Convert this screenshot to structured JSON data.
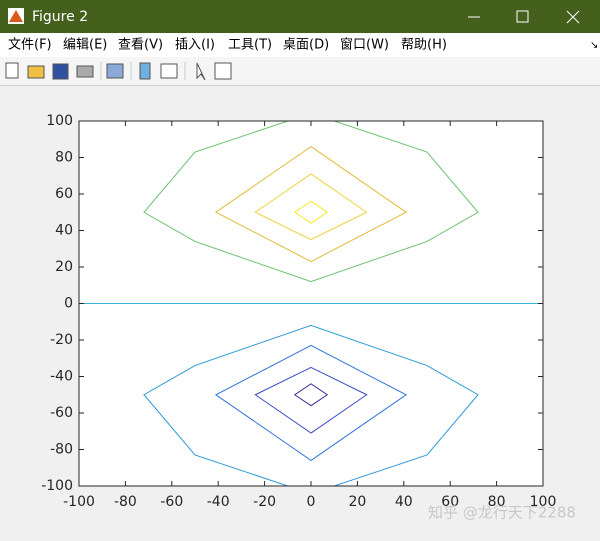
{
  "window": {
    "title": "Figure 2",
    "menu": [
      "文件(F)",
      "编辑(E)",
      "查看(V)",
      "插入(I)",
      "工具(T)",
      "桌面(D)",
      "窗口(W)",
      "帮助(H)"
    ],
    "watermark": "知乎 @龙行天下2288"
  },
  "chart_data": {
    "type": "contour",
    "xlim": [
      -100,
      100
    ],
    "ylim": [
      -100,
      100
    ],
    "xticks": [
      -100,
      -80,
      -60,
      -40,
      -20,
      0,
      20,
      40,
      60,
      80,
      100
    ],
    "yticks": [
      -100,
      -80,
      -60,
      -40,
      -20,
      0,
      20,
      40,
      60,
      80,
      100
    ],
    "series": [
      {
        "color": "#6cc070",
        "closed": false,
        "x": [
          10,
          50,
          72,
          50,
          0,
          -50,
          -72,
          -50,
          -10
        ],
        "y": [
          100,
          83,
          50,
          34,
          12,
          34,
          50,
          83,
          100
        ]
      },
      {
        "color": "#e0bc38",
        "closed": true,
        "x": [
          0,
          41,
          0,
          -41
        ],
        "y": [
          86,
          50,
          23,
          50
        ]
      },
      {
        "color": "#efd23c",
        "closed": true,
        "x": [
          0,
          24,
          0,
          -24
        ],
        "y": [
          71,
          50,
          35,
          50
        ]
      },
      {
        "color": "#f5ea20",
        "closed": true,
        "x": [
          0,
          7,
          0,
          -7
        ],
        "y": [
          56,
          50,
          44,
          50
        ]
      },
      {
        "color": "#38b4d8",
        "closed": false,
        "x": [
          -100,
          100
        ],
        "y": [
          0,
          0
        ]
      },
      {
        "color": "#2c9ad8",
        "closed": false,
        "x": [
          10,
          50,
          72,
          50,
          0,
          -50,
          -72,
          -50,
          -10
        ],
        "y": [
          -100,
          -83,
          -50,
          -34,
          -12,
          -34,
          -50,
          -83,
          -100
        ]
      },
      {
        "color": "#2e72d8",
        "closed": true,
        "x": [
          0,
          41,
          0,
          -41
        ],
        "y": [
          -86,
          -50,
          -23,
          -50
        ]
      },
      {
        "color": "#3a4ac8",
        "closed": true,
        "x": [
          0,
          24,
          0,
          -24
        ],
        "y": [
          -71,
          -50,
          -35,
          -50
        ]
      },
      {
        "color": "#3a2a98",
        "closed": true,
        "x": [
          0,
          7,
          0,
          -7
        ],
        "y": [
          -56,
          -50,
          -44,
          -50
        ]
      }
    ]
  }
}
